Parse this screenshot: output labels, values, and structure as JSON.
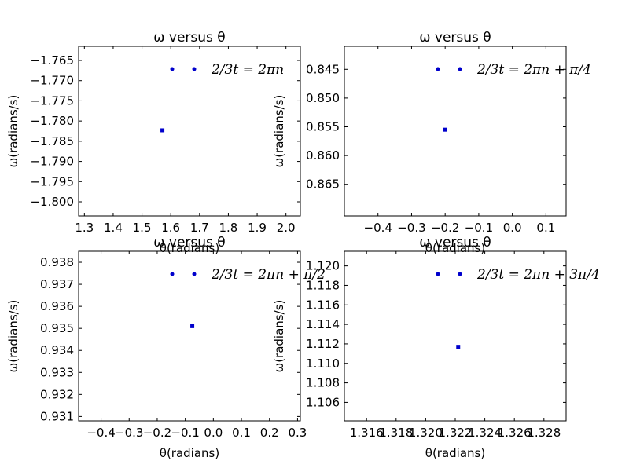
{
  "chart_data": [
    {
      "type": "scatter",
      "title": "ω versus θ",
      "xlabel": "θ(radians)",
      "ylabel": "ω(radians/s)",
      "xlim": [
        1.28,
        2.05
      ],
      "ylim": [
        -1.8035,
        -1.7615
      ],
      "xticks": [
        1.3,
        1.4,
        1.5,
        1.6,
        1.7,
        1.8,
        1.9,
        2.0
      ],
      "xtick_labels": [
        "1.3",
        "1.4",
        "1.5",
        "1.6",
        "1.7",
        "1.8",
        "1.9",
        "2.0"
      ],
      "yticks": [
        -1.765,
        -1.77,
        -1.775,
        -1.78,
        -1.785,
        -1.79,
        -1.795,
        -1.8
      ],
      "ytick_labels": [
        "−1.765",
        "−1.770",
        "−1.775",
        "−1.780",
        "−1.785",
        "−1.790",
        "−1.795",
        "−1.800"
      ],
      "series": [
        {
          "name": "2/3t = 2πn",
          "x": [
            1.571
          ],
          "y": [
            -1.7823
          ]
        }
      ],
      "legend": {
        "location": "upper right",
        "label": "2/3t = 2πn"
      },
      "color": "#0000cc"
    },
    {
      "type": "scatter",
      "title": "ω versus θ",
      "xlabel": "θ(radians)",
      "ylabel": "ω(radians/s)",
      "xlim": [
        -0.5,
        0.16
      ],
      "ylim": [
        0.841,
        0.8705
      ],
      "y_inverted": true,
      "xticks": [
        -0.4,
        -0.3,
        -0.2,
        -0.1,
        0.0,
        0.1
      ],
      "xtick_labels": [
        "−0.4",
        "−0.3",
        "−0.2",
        "−0.1",
        "0.0",
        "0.1"
      ],
      "yticks": [
        0.845,
        0.85,
        0.855,
        0.86,
        0.865
      ],
      "ytick_labels": [
        "0.845",
        "0.850",
        "0.855",
        "0.860",
        "0.865"
      ],
      "series": [
        {
          "name": "2/3t = 2πn + π/4",
          "x": [
            -0.2
          ],
          "y": [
            0.8555
          ]
        }
      ],
      "legend": {
        "location": "upper right",
        "label": "2/3t = 2πn + π/4"
      },
      "color": "#0000cc"
    },
    {
      "type": "scatter",
      "title": "ω versus θ",
      "xlabel": "θ(radians)",
      "ylabel": "ω(radians/s)",
      "xlim": [
        -0.48,
        0.31
      ],
      "ylim": [
        0.9308,
        0.9385
      ],
      "xticks": [
        -0.4,
        -0.3,
        -0.2,
        -0.1,
        0.0,
        0.1,
        0.2,
        0.3
      ],
      "xtick_labels": [
        "−0.4",
        "−0.3",
        "−0.2",
        "−0.1",
        "0.0",
        "0.1",
        "0.2",
        "0.3"
      ],
      "yticks": [
        0.931,
        0.932,
        0.933,
        0.934,
        0.935,
        0.936,
        0.937,
        0.938
      ],
      "ytick_labels": [
        "0.931",
        "0.932",
        "0.933",
        "0.934",
        "0.935",
        "0.936",
        "0.937",
        "0.938"
      ],
      "series": [
        {
          "name": "2/3t = 2πn + π/2",
          "x": [
            -0.075
          ],
          "y": [
            0.9351
          ]
        }
      ],
      "legend": {
        "location": "upper right",
        "label": "2/3t = 2πn + π/2"
      },
      "color": "#0000cc"
    },
    {
      "type": "scatter",
      "title": "ω versus θ",
      "xlabel": "θ(radians)",
      "ylabel": "ω(radians/s)",
      "xlim": [
        1.3145,
        1.3295
      ],
      "ylim": [
        1.1041,
        1.1215
      ],
      "xticks": [
        1.316,
        1.318,
        1.32,
        1.322,
        1.324,
        1.326,
        1.328
      ],
      "xtick_labels": [
        "1.316",
        "1.318",
        "1.320",
        "1.322",
        "1.324",
        "1.326",
        "1.328"
      ],
      "yticks": [
        1.106,
        1.108,
        1.11,
        1.112,
        1.114,
        1.116,
        1.118,
        1.12
      ],
      "ytick_labels": [
        "1.106",
        "1.108",
        "1.110",
        "1.112",
        "1.114",
        "1.116",
        "1.118",
        "1.120"
      ],
      "series": [
        {
          "name": "2/3t = 2πn + 3π/4",
          "x": [
            1.3222
          ],
          "y": [
            1.1117
          ]
        }
      ],
      "legend": {
        "location": "upper right",
        "label": "2/3t = 2πn + 3π/4"
      },
      "color": "#0000cc"
    }
  ]
}
